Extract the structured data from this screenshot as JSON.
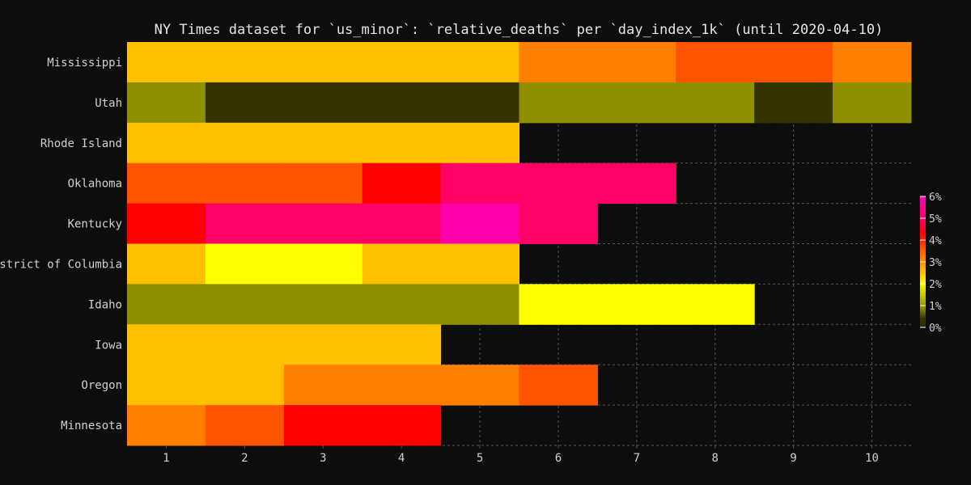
{
  "chart_data": {
    "type": "heatmap",
    "title": "NY Times dataset for `us_minor`: `relative_deaths` per `day_index_1k` (until 2020-04-10)",
    "xlabel": "",
    "ylabel": "",
    "x": [
      1,
      2,
      3,
      4,
      5,
      6,
      7,
      8,
      9,
      10
    ],
    "xlim": [
      0.5,
      10.5
    ],
    "grid": true,
    "states": [
      "Mississippi",
      "Utah",
      "Rhode Island",
      "Oklahoma",
      "Kentucky",
      "District of Columbia",
      "Idaho",
      "Iowa",
      "Oregon",
      "Minnesota"
    ],
    "values": [
      [
        2.5,
        2.5,
        2.5,
        2.5,
        2.5,
        3.2,
        3.2,
        3.6,
        3.6,
        3.2
      ],
      [
        0.9,
        0.4,
        0.4,
        0.4,
        0.4,
        0.9,
        0.9,
        0.9,
        0.4,
        0.9
      ],
      [
        2.5,
        2.5,
        2.5,
        2.5,
        2.5,
        null,
        null,
        null,
        null,
        null
      ],
      [
        3.6,
        3.6,
        3.6,
        4.3,
        5.0,
        5.0,
        5.0,
        null,
        null,
        null
      ],
      [
        4.3,
        5.0,
        5.0,
        5.0,
        5.8,
        5.0,
        null,
        null,
        null,
        null
      ],
      [
        2.5,
        2.0,
        2.0,
        2.5,
        2.5,
        null,
        null,
        null,
        null,
        null
      ],
      [
        0.9,
        0.9,
        0.9,
        0.9,
        0.9,
        2.0,
        2.0,
        2.0,
        null,
        null
      ],
      [
        2.5,
        2.5,
        2.5,
        2.5,
        null,
        null,
        null,
        null,
        null,
        null
      ],
      [
        2.5,
        2.5,
        3.2,
        3.2,
        3.2,
        3.6,
        null,
        null,
        null,
        null
      ],
      [
        3.2,
        3.6,
        4.3,
        4.3,
        null,
        null,
        null,
        null,
        null,
        null
      ]
    ],
    "colorbar": {
      "ticks": [
        "0%",
        "1%",
        "2%",
        "3%",
        "4%",
        "5%",
        "6%"
      ],
      "range": [
        0,
        6
      ],
      "stops": [
        {
          "v": 0.0,
          "color": "#2b2b00"
        },
        {
          "v": 0.4,
          "color": "#333300"
        },
        {
          "v": 0.9,
          "color": "#8f8f00"
        },
        {
          "v": 1.5,
          "color": "#c8c800"
        },
        {
          "v": 2.0,
          "color": "#ffff00"
        },
        {
          "v": 2.5,
          "color": "#ffc000"
        },
        {
          "v": 3.2,
          "color": "#ff7f00"
        },
        {
          "v": 3.6,
          "color": "#ff5500"
        },
        {
          "v": 4.3,
          "color": "#ff0000"
        },
        {
          "v": 5.0,
          "color": "#ff0066"
        },
        {
          "v": 5.8,
          "color": "#ff00aa"
        },
        {
          "v": 6.0,
          "color": "#ff00cc"
        }
      ]
    },
    "colors": {
      "background": "#0d0d0d",
      "grid": "#555555",
      "text": "#d0d0d0"
    }
  }
}
